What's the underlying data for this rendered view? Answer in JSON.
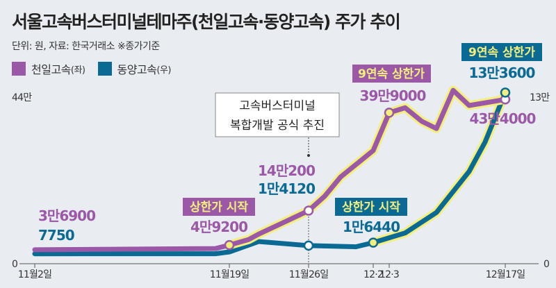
{
  "title": "서울고속버스터미널테마주(천일고속·동양고속) 주가 추이",
  "subtitle": "단위: 원, 자료: 한국거래소 ※종가기준",
  "colors": {
    "purple": "#9a58a6",
    "blue": "#0b6a94",
    "highlight": "#f3ef7c",
    "background": "#e9edf2"
  },
  "chart_data": {
    "type": "line",
    "title": "서울고속버스터미널테마주(천일고속·동양고속) 주가 추이",
    "legend_position": "top-left",
    "grid": false,
    "x_ticks": [
      "11월2일",
      "11월19일",
      "11월26일",
      "12·2",
      "12·3",
      "12월17일"
    ],
    "left_axis": {
      "labels": [
        "0",
        "44만"
      ],
      "range": [
        0,
        440000
      ],
      "series": "천일고속"
    },
    "right_axis": {
      "labels": [
        "0",
        "13만"
      ],
      "range": [
        0,
        130000
      ],
      "series": "동양고속"
    },
    "series": [
      {
        "name": "천일고속",
        "legend": "천일고속",
        "legend_axis": "(좌)",
        "axis": "left",
        "points": [
          [
            "11-02",
            36900
          ],
          [
            "11-18",
            40000
          ],
          [
            "11-19",
            49200
          ],
          [
            "11-21",
            64000
          ],
          [
            "11-22",
            78000
          ],
          [
            "11-25",
            115000
          ],
          [
            "11-26",
            140200
          ],
          [
            "11-27",
            178000
          ],
          [
            "11-28",
            229000
          ],
          [
            "12-02",
            299000
          ],
          [
            "12-03",
            399000
          ],
          [
            "12-04",
            412000
          ],
          [
            "12-05",
            376000
          ],
          [
            "12-06",
            357000
          ],
          [
            "12-09",
            458000
          ],
          [
            "12-10",
            418000
          ],
          [
            "12-17",
            434000
          ]
        ]
      },
      {
        "name": "동양고속",
        "legend": "동양고속",
        "legend_axis": "(우)",
        "axis": "right",
        "points": [
          [
            "11-02",
            7750
          ],
          [
            "11-18",
            7800
          ],
          [
            "11-19",
            9200
          ],
          [
            "11-22",
            17300
          ],
          [
            "11-26",
            14120
          ],
          [
            "11-29",
            13200
          ],
          [
            "12-02",
            16440
          ],
          [
            "12-04",
            24000
          ],
          [
            "12-06",
            40000
          ],
          [
            "12-10",
            72000
          ],
          [
            "12-12",
            95000
          ],
          [
            "12-17",
            133600
          ]
        ]
      }
    ],
    "annotations": {
      "p_start": "3만6900",
      "b_start": "7750",
      "limit_start_p": "상한가 시작",
      "p_1119": "4만9200",
      "p_1126": "14만200",
      "b_1126": "1만4120",
      "callout": [
        "고속버스터미널",
        "복합개발 공식 추진"
      ],
      "limit9_p": "9연속 상한가",
      "p_1203": "39만9000",
      "limit_start_b": "상한가 시작",
      "b_1202": "1만6440",
      "limit9_b": "9연속 상한가",
      "b_1217": "13만3600",
      "p_1217": "43만4000"
    }
  }
}
